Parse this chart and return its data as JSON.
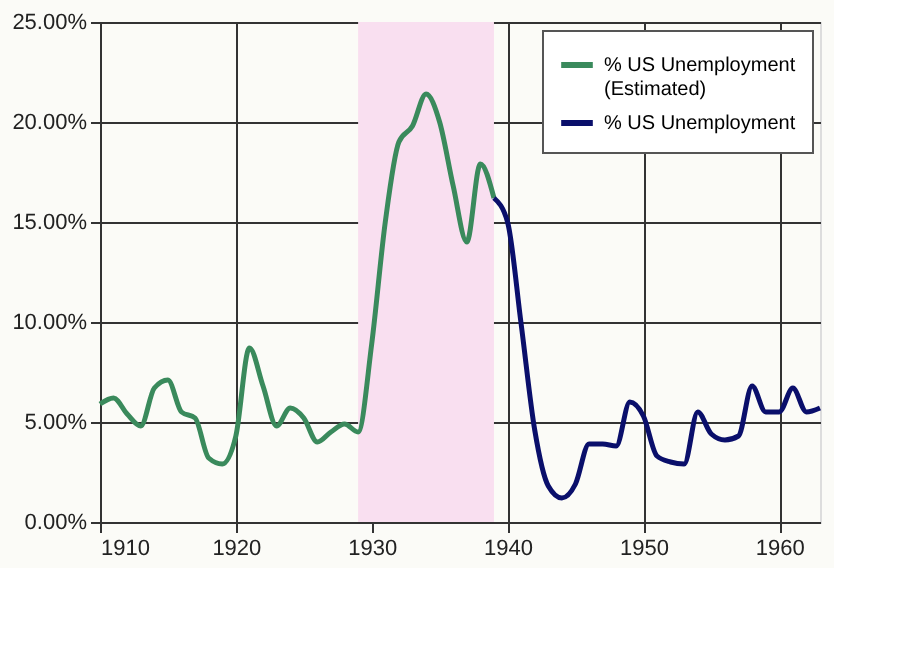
{
  "chart_data": {
    "type": "line",
    "xlim": [
      1910,
      1963
    ],
    "xticks": [
      1910,
      1920,
      1930,
      1940,
      1950,
      1960
    ],
    "ylim": [
      0,
      25
    ],
    "yticks": [
      {
        "value": 0,
        "label": "0.00%"
      },
      {
        "value": 5,
        "label": "5.00%"
      },
      {
        "value": 10,
        "label": "10.00%"
      },
      {
        "value": 15,
        "label": "15.00%"
      },
      {
        "value": 20,
        "label": "20.00%"
      },
      {
        "value": 25,
        "label": "25.00%"
      }
    ],
    "grid": true,
    "legend": "top right",
    "marker": "none",
    "line_style": "solid",
    "bands": [
      {
        "axis": "x",
        "from": 1929,
        "to": 1939,
        "color": "#f9dff0"
      }
    ],
    "series": [
      {
        "name": "% US Unemployment (Estimated)",
        "color": "#3a8a5c",
        "x": [
          1910,
          1911,
          1912,
          1913,
          1914,
          1915,
          1916,
          1917,
          1918,
          1919,
          1920,
          1921,
          1922,
          1923,
          1924,
          1925,
          1926,
          1927,
          1928,
          1929,
          1930,
          1931,
          1932,
          1933,
          1934,
          1935,
          1936,
          1937,
          1938,
          1939
        ],
        "values": [
          5.9,
          6.2,
          5.4,
          4.8,
          6.7,
          7.1,
          5.5,
          5.2,
          3.2,
          2.9,
          4.3,
          8.7,
          6.8,
          4.8,
          5.7,
          5.2,
          4.0,
          4.5,
          4.9,
          4.5,
          8.9,
          15.0,
          19.0,
          19.8,
          21.4,
          20.0,
          16.8,
          14.0,
          17.9,
          16.2
        ]
      },
      {
        "name": "% US Unemployment",
        "color": "#0a0f6b",
        "x": [
          1939,
          1940,
          1941,
          1942,
          1943,
          1944,
          1945,
          1946,
          1947,
          1948,
          1949,
          1950,
          1951,
          1952,
          1953,
          1954,
          1955,
          1956,
          1957,
          1958,
          1959,
          1960,
          1961,
          1962,
          1963
        ],
        "values": [
          16.2,
          15.0,
          9.9,
          4.6,
          1.8,
          1.2,
          1.9,
          3.9,
          3.9,
          3.8,
          6.0,
          5.3,
          3.3,
          3.0,
          2.9,
          5.5,
          4.4,
          4.1,
          4.3,
          6.8,
          5.5,
          5.5,
          6.7,
          5.5,
          5.7
        ]
      }
    ]
  }
}
